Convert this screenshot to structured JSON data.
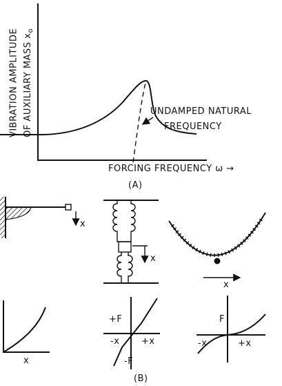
{
  "panel_a": {
    "y_label_line1": "VIBRATION AMPLITUDE",
    "y_label_line2": "OF AUXILIARY MASS x",
    "y_label_subscript": "o",
    "annotation_line1": "UNDAMPED NATURAL",
    "annotation_line2": "FREQUENCY",
    "x_label": "FORCING FREQUENCY ω →",
    "caption": "(A)"
  },
  "panel_b": {
    "cantilever_arrow_label": "x",
    "spring_arrow_label": "x",
    "bowl_arrow_label": "x",
    "graph1": {
      "x_label": "x"
    },
    "graph2": {
      "plus_f": "+F",
      "minus_x": "-x",
      "plus_x": "+x",
      "minus_f": "-F"
    },
    "graph3": {
      "f": "F",
      "minus_x": "-x",
      "plus_x": "+x"
    },
    "caption": "(B)"
  }
}
